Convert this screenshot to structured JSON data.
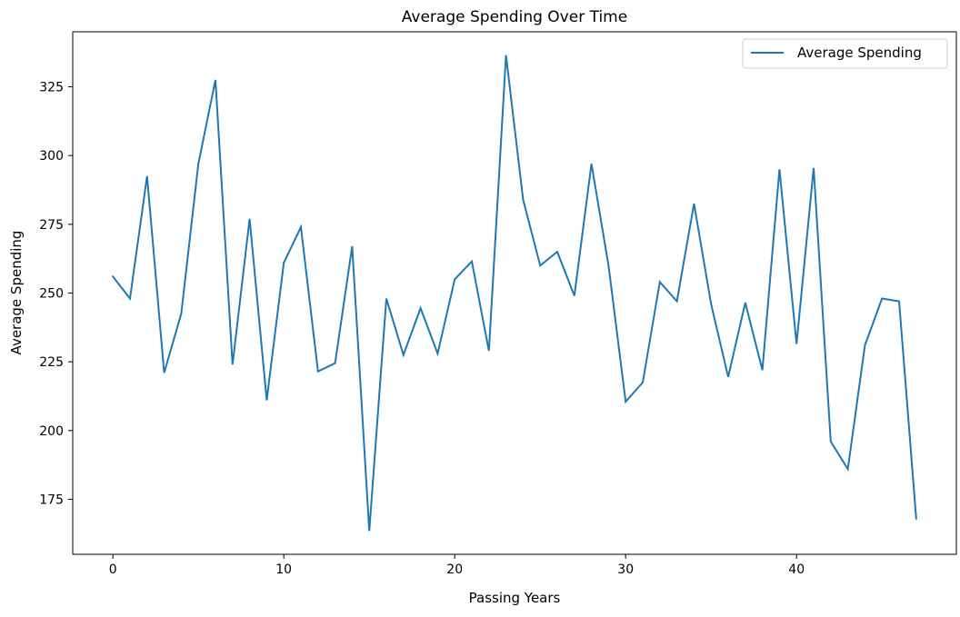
{
  "chart_data": {
    "type": "line",
    "title": "Average Spending Over Time",
    "xlabel": "Passing Years",
    "ylabel": "Average Spending",
    "xlim": [
      -2.35,
      49.35
    ],
    "ylim": [
      155,
      345
    ],
    "xticks": [
      0,
      10,
      20,
      30,
      40
    ],
    "yticks": [
      175,
      200,
      225,
      250,
      275,
      300,
      325
    ],
    "grid": false,
    "legend_position": "top-right",
    "colors": {
      "series": "#1f77b4",
      "axes": "#000000"
    },
    "series": [
      {
        "name": "Average Spending",
        "x": [
          0,
          1,
          2,
          3,
          4,
          5,
          6,
          7,
          8,
          9,
          10,
          11,
          12,
          13,
          14,
          15,
          16,
          17,
          18,
          19,
          20,
          21,
          22,
          23,
          24,
          25,
          26,
          27,
          28,
          29,
          30,
          31,
          32,
          33,
          34,
          35,
          36,
          37,
          38,
          39,
          40,
          41,
          42,
          43,
          44,
          45,
          46,
          47
        ],
        "values": [
          256,
          248,
          292.5,
          221,
          242.5,
          297,
          327.5,
          224,
          277,
          211,
          261,
          274,
          221.5,
          224.5,
          267,
          163.5,
          248,
          227.5,
          244.5,
          228,
          255,
          261.5,
          229,
          336.5,
          284,
          260,
          265,
          249,
          297,
          260,
          210.5,
          217.5,
          254,
          247,
          282.5,
          246,
          219.5,
          246.5,
          222,
          295,
          231.5,
          295.5,
          196,
          186,
          231,
          248,
          247,
          168
        ]
      }
    ]
  }
}
